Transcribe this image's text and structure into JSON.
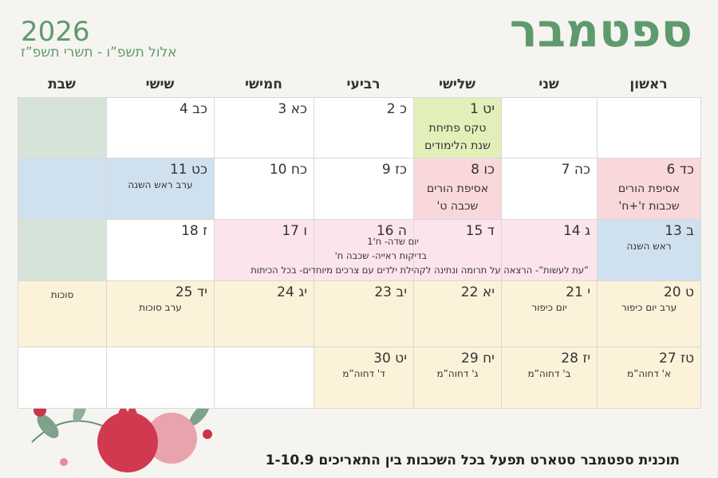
{
  "header": {
    "title": "ספטמבר",
    "year": "2026",
    "hebrew_range": "אלול תשפ”ו - תשרי תשפ”ז"
  },
  "weekdays": [
    "ראשון",
    "שני",
    "שלישי",
    "רביעי",
    "חמישי",
    "שישי",
    "שבת"
  ],
  "weeks": [
    {
      "days": [
        null,
        null,
        {
          "date": "1 יט",
          "events": [
            "טקס פתיחת",
            "שנת הלימודים"
          ]
        },
        {
          "date": "2 כ"
        },
        {
          "date": "3 כא"
        },
        {
          "date": "4 כב"
        },
        null
      ]
    },
    {
      "days": [
        {
          "date": "6 כד",
          "events": [
            "אסיפת הורים",
            "שכבות ז'+ח'"
          ]
        },
        {
          "date": "7 כה"
        },
        {
          "date": "8 כו",
          "events": [
            "אסיפת הורים",
            "שכבה ט'"
          ]
        },
        {
          "date": "9 כז"
        },
        {
          "date": "10 כח"
        },
        {
          "date": "11 כט",
          "events": [
            "ערב ראש השנה"
          ]
        },
        null
      ]
    },
    {
      "days": [
        {
          "date": "13 ב",
          "events": [
            "ראש השנה"
          ]
        },
        {
          "date": "14 ג"
        },
        {
          "date": "15 ד"
        },
        {
          "date": "16 ה"
        },
        {
          "date": "17 ו"
        },
        {
          "date": "18 ז"
        },
        null
      ],
      "spanning": [
        "יום שדה- ח'1",
        "בדיקות ראייה- שכבה ח'",
        "”עת לעשות”- הרצאה על תרומה ונתינה לקהילת ילדים עם צרכים מיוחדים- בכל הכיתות"
      ]
    },
    {
      "days": [
        {
          "date": "20 ט",
          "events": [
            "ערב יום כיפור"
          ]
        },
        {
          "date": "21 י",
          "events": [
            "יום כיפור"
          ]
        },
        {
          "date": "22 יא"
        },
        {
          "date": "23 יב"
        },
        {
          "date": "24 יג"
        },
        {
          "date": "25 יד",
          "events": [
            "ערב סוכות"
          ]
        },
        {
          "events": [
            "סוכות"
          ]
        }
      ]
    },
    {
      "days": [
        {
          "date": "27 טז",
          "events": [
            "א' דחוה”מ"
          ]
        },
        {
          "date": "28 יז",
          "events": [
            "ב' דחוה”מ"
          ]
        },
        {
          "date": "29 יח",
          "events": [
            "ג' דחוה”מ"
          ]
        },
        {
          "date": "30 יט",
          "events": [
            "ד' דחוה”מ"
          ]
        },
        null,
        null,
        null
      ]
    }
  ],
  "footer": "תוכנית ספטמבר סטארט תפעל בכל השכבות בין התאריכים 1-10.9"
}
